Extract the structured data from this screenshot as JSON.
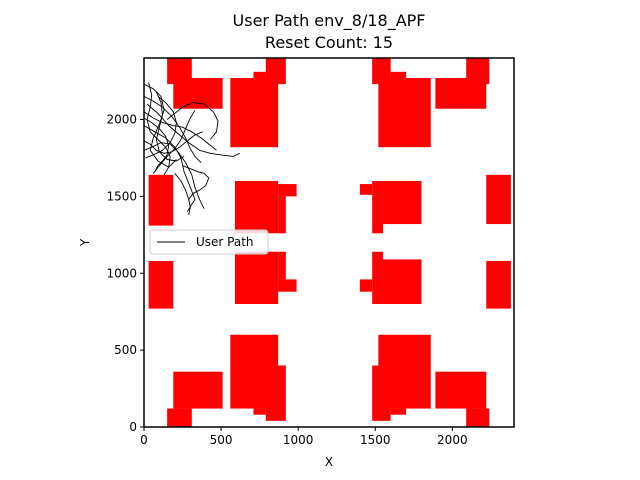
{
  "chart_data": {
    "type": "line",
    "title": "User Path env_8/18_APF",
    "subtitle": "Reset Count: 15",
    "xlabel": "X",
    "ylabel": "Y",
    "xlim": [
      0,
      2400
    ],
    "ylim": [
      0,
      2400
    ],
    "x_ticks": [
      "0",
      "500",
      "1000",
      "1500",
      "2000"
    ],
    "y_ticks": [
      "0",
      "500",
      "1000",
      "1500",
      "2000"
    ],
    "x_tick_values": [
      0,
      500,
      1000,
      1500,
      2000
    ],
    "y_tick_values": [
      0,
      500,
      1000,
      1500,
      2000
    ],
    "legend": {
      "entries": [
        "User Path"
      ],
      "placement": "center-left"
    },
    "grid": false,
    "colors": {
      "obstacle": "#ff0000",
      "path": "#000000",
      "frame": "#000000"
    },
    "obstacles": [
      [
        150,
        2230,
        310,
        2400
      ],
      [
        190,
        2070,
        510,
        2270
      ],
      [
        560,
        1820,
        870,
        2270
      ],
      [
        710,
        2270,
        790,
        2310
      ],
      [
        790,
        2230,
        920,
        2400
      ],
      [
        1480,
        2230,
        1600,
        2400
      ],
      [
        1600,
        2270,
        1700,
        2310
      ],
      [
        1520,
        1820,
        1860,
        2270
      ],
      [
        1890,
        2070,
        2220,
        2270
      ],
      [
        2090,
        2230,
        2240,
        2400
      ],
      [
        30,
        1310,
        190,
        1640
      ],
      [
        590,
        1260,
        870,
        1600
      ],
      [
        870,
        1500,
        990,
        1580
      ],
      [
        870,
        1260,
        920,
        1500
      ],
      [
        1400,
        1510,
        1480,
        1580
      ],
      [
        1480,
        1260,
        1550,
        1600
      ],
      [
        1550,
        1320,
        1800,
        1600
      ],
      [
        2220,
        1320,
        2380,
        1640
      ],
      [
        30,
        770,
        190,
        1080
      ],
      [
        590,
        800,
        870,
        1140
      ],
      [
        870,
        880,
        990,
        960
      ],
      [
        870,
        960,
        920,
        1140
      ],
      [
        1400,
        880,
        1480,
        960
      ],
      [
        1480,
        800,
        1550,
        1140
      ],
      [
        1550,
        800,
        1800,
        1090
      ],
      [
        2220,
        770,
        2380,
        1080
      ],
      [
        190,
        120,
        510,
        360
      ],
      [
        150,
        0,
        310,
        120
      ],
      [
        560,
        120,
        870,
        600
      ],
      [
        710,
        80,
        790,
        120
      ],
      [
        790,
        40,
        920,
        400
      ],
      [
        1480,
        40,
        1600,
        400
      ],
      [
        1600,
        80,
        1700,
        120
      ],
      [
        1520,
        120,
        1860,
        600
      ],
      [
        1890,
        120,
        2220,
        360
      ],
      [
        2090,
        0,
        2240,
        120
      ]
    ],
    "series": [
      {
        "name": "User Path",
        "paths": [
          [
            [
              0,
              2230
            ],
            [
              60,
              2200
            ],
            [
              110,
              2150
            ],
            [
              130,
              2060
            ],
            [
              100,
              1970
            ],
            [
              60,
              1880
            ],
            [
              40,
              1800
            ],
            [
              90,
              1730
            ],
            [
              160,
              1690
            ],
            [
              210,
              1740
            ]
          ],
          [
            [
              0,
              1960
            ],
            [
              70,
              1920
            ],
            [
              140,
              1880
            ],
            [
              200,
              1820
            ],
            [
              240,
              1750
            ],
            [
              260,
              1660
            ],
            [
              300,
              1560
            ],
            [
              330,
              1480
            ],
            [
              280,
              1400
            ]
          ],
          [
            [
              20,
              2100
            ],
            [
              90,
              2040
            ],
            [
              160,
              1960
            ],
            [
              230,
              1900
            ],
            [
              290,
              1850
            ],
            [
              360,
              1800
            ],
            [
              430,
              1780
            ],
            [
              500,
              1770
            ],
            [
              580,
              1760
            ],
            [
              620,
              1780
            ]
          ],
          [
            [
              0,
              1800
            ],
            [
              50,
              1820
            ],
            [
              110,
              1850
            ],
            [
              170,
              1840
            ],
            [
              220,
              1790
            ],
            [
              270,
              1720
            ],
            [
              310,
              1640
            ],
            [
              330,
              1560
            ],
            [
              360,
              1480
            ],
            [
              390,
              1420
            ]
          ],
          [
            [
              80,
              2180
            ],
            [
              110,
              2110
            ],
            [
              120,
              2030
            ],
            [
              100,
              1950
            ],
            [
              80,
              1870
            ],
            [
              100,
              1790
            ],
            [
              150,
              1740
            ],
            [
              210,
              1730
            ],
            [
              260,
              1760
            ]
          ],
          [
            [
              0,
              2050
            ],
            [
              60,
              2010
            ],
            [
              120,
              1980
            ],
            [
              190,
              1960
            ],
            [
              250,
              1950
            ],
            [
              310,
              1920
            ],
            [
              370,
              1880
            ],
            [
              420,
              1840
            ],
            [
              470,
              1800
            ]
          ],
          [
            [
              30,
              2240
            ],
            [
              50,
              2160
            ],
            [
              40,
              2080
            ],
            [
              20,
              2000
            ],
            [
              40,
              1920
            ],
            [
              90,
              1870
            ],
            [
              140,
              1820
            ],
            [
              170,
              1760
            ],
            [
              160,
              1690
            ],
            [
              130,
              1640
            ]
          ],
          [
            [
              0,
              1860
            ],
            [
              40,
              1840
            ],
            [
              80,
              1800
            ],
            [
              130,
              1780
            ],
            [
              180,
              1790
            ],
            [
              230,
              1820
            ],
            [
              280,
              1860
            ],
            [
              330,
              1900
            ],
            [
              380,
              1920
            ]
          ],
          [
            [
              150,
              2000
            ],
            [
              200,
              2040
            ],
            [
              250,
              2080
            ],
            [
              320,
              2110
            ],
            [
              390,
              2100
            ],
            [
              450,
              2050
            ],
            [
              480,
              1990
            ],
            [
              470,
              1920
            ],
            [
              430,
              1870
            ]
          ],
          [
            [
              10,
              1750
            ],
            [
              60,
              1770
            ],
            [
              120,
              1800
            ],
            [
              170,
              1850
            ],
            [
              200,
              1910
            ],
            [
              210,
              1980
            ],
            [
              190,
              2050
            ],
            [
              140,
              2110
            ],
            [
              90,
              2150
            ]
          ],
          [
            [
              250,
              1700
            ],
            [
              300,
              1680
            ],
            [
              350,
              1660
            ],
            [
              390,
              1650
            ],
            [
              420,
              1620
            ],
            [
              400,
              1570
            ],
            [
              360,
              1540
            ],
            [
              320,
              1520
            ],
            [
              290,
              1480
            ]
          ],
          [
            [
              0,
              2150
            ],
            [
              60,
              2120
            ],
            [
              120,
              2080
            ],
            [
              180,
              2020
            ],
            [
              230,
              1950
            ],
            [
              270,
              1880
            ],
            [
              300,
              1810
            ],
            [
              330,
              1760
            ],
            [
              370,
              1720
            ]
          ],
          [
            [
              60,
              1650
            ],
            [
              100,
              1700
            ],
            [
              150,
              1760
            ],
            [
              200,
              1810
            ],
            [
              240,
              1870
            ],
            [
              270,
              1940
            ],
            [
              300,
              2010
            ],
            [
              330,
              2060
            ]
          ],
          [
            [
              0,
              2010
            ],
            [
              50,
              1980
            ],
            [
              100,
              1940
            ],
            [
              140,
              1890
            ],
            [
              160,
              1830
            ],
            [
              150,
              1770
            ],
            [
              120,
              1730
            ],
            [
              90,
              1700
            ],
            [
              70,
              1660
            ]
          ],
          [
            [
              200,
              1650
            ],
            [
              240,
              1600
            ],
            [
              270,
              1540
            ],
            [
              290,
              1480
            ],
            [
              300,
              1430
            ],
            [
              290,
              1380
            ]
          ]
        ]
      }
    ]
  }
}
